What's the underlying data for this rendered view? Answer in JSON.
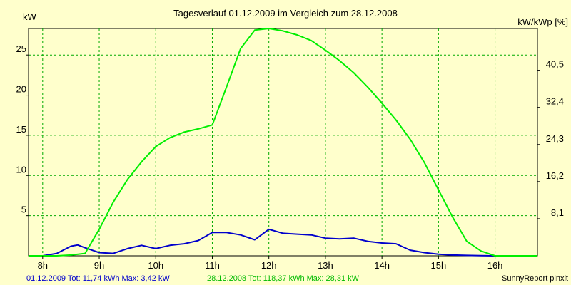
{
  "chart_data": {
    "type": "line",
    "title": "Tagesverlauf 01.12.2009 im Vergleich zum 28.12.2008",
    "ylabel_left": "kW",
    "ylabel_right": "kW/kWp [%]",
    "xlim": [
      7.75,
      16.75
    ],
    "ylim": [
      0,
      28.3
    ],
    "x_ticks": [
      {
        "value": 8,
        "label": "8h"
      },
      {
        "value": 9,
        "label": "9h"
      },
      {
        "value": 10,
        "label": "10h"
      },
      {
        "value": 11,
        "label": "11h"
      },
      {
        "value": 12,
        "label": "12h"
      },
      {
        "value": 13,
        "label": "13h"
      },
      {
        "value": 14,
        "label": "14h"
      },
      {
        "value": 15,
        "label": "15h"
      },
      {
        "value": 16,
        "label": "16h"
      }
    ],
    "y_ticks_left": [
      {
        "value": 5,
        "label": "5"
      },
      {
        "value": 10,
        "label": "10"
      },
      {
        "value": 15,
        "label": "15"
      },
      {
        "value": 20,
        "label": "20"
      },
      {
        "value": 25,
        "label": "25"
      }
    ],
    "y_ticks_right": [
      {
        "value": 4.62,
        "label": "8,1"
      },
      {
        "value": 9.24,
        "label": "16,2"
      },
      {
        "value": 13.86,
        "label": "24,3"
      },
      {
        "value": 18.48,
        "label": "32,4"
      },
      {
        "value": 23.1,
        "label": "40,5"
      }
    ],
    "grid": true,
    "series": [
      {
        "name": "01.12.2009",
        "color": "#0000CC",
        "x": [
          7.75,
          8.0,
          8.25,
          8.5,
          8.62,
          8.75,
          9.0,
          9.25,
          9.5,
          9.75,
          10.0,
          10.25,
          10.5,
          10.75,
          11.0,
          11.25,
          11.5,
          11.75,
          12.0,
          12.25,
          12.5,
          12.75,
          13.0,
          13.25,
          13.5,
          13.75,
          14.0,
          14.25,
          14.5,
          14.75,
          15.0,
          15.25,
          15.5,
          15.75,
          16.0,
          16.25,
          16.5,
          16.75
        ],
        "y": [
          0,
          0,
          0.3,
          1.2,
          1.35,
          1.0,
          0.4,
          0.3,
          0.9,
          1.3,
          0.9,
          1.3,
          1.5,
          1.9,
          2.9,
          2.9,
          2.6,
          2.0,
          3.3,
          2.8,
          2.7,
          2.6,
          2.2,
          2.1,
          2.2,
          1.8,
          1.6,
          1.5,
          0.7,
          0.4,
          0.2,
          0.1,
          0.05,
          0.02,
          0,
          0,
          0,
          0
        ]
      },
      {
        "name": "28.12.2008",
        "color": "#00EE00",
        "x": [
          7.75,
          8.0,
          8.25,
          8.5,
          8.75,
          9.0,
          9.25,
          9.5,
          9.75,
          10.0,
          10.25,
          10.5,
          10.75,
          11.0,
          11.25,
          11.5,
          11.75,
          12.0,
          12.25,
          12.5,
          12.75,
          13.0,
          13.25,
          13.5,
          13.75,
          14.0,
          14.25,
          14.5,
          14.75,
          15.0,
          15.25,
          15.5,
          15.75,
          16.0,
          16.25,
          16.5,
          16.75
        ],
        "y": [
          0,
          0,
          0,
          0.1,
          0.3,
          3.3,
          6.7,
          9.5,
          11.7,
          13.6,
          14.7,
          15.4,
          15.8,
          16.3,
          21.0,
          25.8,
          28.1,
          28.3,
          28.0,
          27.5,
          26.8,
          25.6,
          24.3,
          22.8,
          21.0,
          19.0,
          16.9,
          14.5,
          11.6,
          8.2,
          4.8,
          1.8,
          0.6,
          0,
          0,
          0,
          0
        ]
      }
    ],
    "footer": {
      "left_blue": "01.12.2009 Tot: 11,74 kWh Max: 3,42 kW",
      "left_green": "28.12.2008 Tot: 118,37 kWh Max: 28,31 kW",
      "right": "SunnyReport pinxit"
    }
  }
}
